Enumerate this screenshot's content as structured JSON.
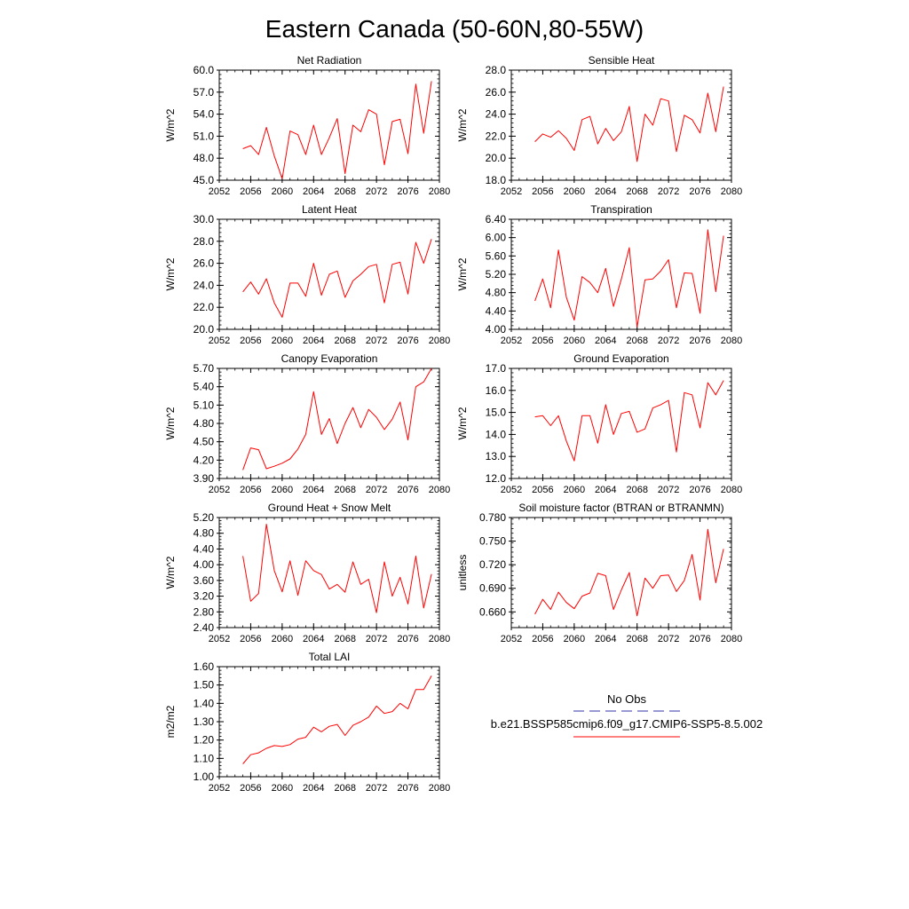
{
  "figure": {
    "title": "Eastern Canada (50-60N,80-55W)"
  },
  "legend": {
    "entries": [
      {
        "label": "No Obs",
        "color": "#3333aa",
        "dash": true
      },
      {
        "label": "b.e21.BSSP585cmip6.f09_g17.CMIP6-SSP5-8.5.002",
        "color": "#ff0000",
        "dash": false
      }
    ]
  },
  "chart_data": [
    {
      "type": "line",
      "title": "Net Radiation",
      "xlabel": "",
      "ylabel": "W/m^2",
      "xlim": [
        2052,
        2080
      ],
      "ylim": [
        45.0,
        60.0
      ],
      "xticks": [
        "2052",
        "2056",
        "2060",
        "2064",
        "2068",
        "2072",
        "2076",
        "2080"
      ],
      "yticks": [
        "45.0",
        "48.0",
        "51.0",
        "54.0",
        "57.0",
        "60.0"
      ],
      "series": [
        {
          "color": "#ff0000",
          "x": [
            2055,
            2056,
            2057,
            2058,
            2059,
            2060,
            2061,
            2062,
            2063,
            2064,
            2065,
            2066,
            2067,
            2068,
            2069,
            2070,
            2071,
            2072,
            2073,
            2074,
            2075,
            2076,
            2077,
            2078,
            2079
          ],
          "values": [
            49.3,
            49.7,
            48.5,
            52.2,
            48.3,
            45.2,
            51.7,
            51.2,
            48.5,
            52.5,
            48.5,
            50.8,
            53.4,
            45.9,
            52.5,
            51.6,
            54.6,
            54.0,
            47.1,
            53.0,
            53.3,
            48.6,
            58.1,
            51.4,
            58.5
          ]
        }
      ]
    },
    {
      "type": "line",
      "title": "Sensible Heat",
      "xlabel": "",
      "ylabel": "W/m^2",
      "xlim": [
        2052,
        2080
      ],
      "ylim": [
        18.0,
        28.0
      ],
      "xticks": [
        "2052",
        "2056",
        "2060",
        "2064",
        "2068",
        "2072",
        "2076",
        "2080"
      ],
      "yticks": [
        "18.0",
        "20.0",
        "22.0",
        "24.0",
        "26.0",
        "28.0"
      ],
      "series": [
        {
          "color": "#ff0000",
          "x": [
            2055,
            2056,
            2057,
            2058,
            2059,
            2060,
            2061,
            2062,
            2063,
            2064,
            2065,
            2066,
            2067,
            2068,
            2069,
            2070,
            2071,
            2072,
            2073,
            2074,
            2075,
            2076,
            2077,
            2078,
            2079
          ],
          "values": [
            21.5,
            22.2,
            21.9,
            22.5,
            21.8,
            20.7,
            23.5,
            23.8,
            21.3,
            22.7,
            21.6,
            22.4,
            24.7,
            19.7,
            24.0,
            23.0,
            25.4,
            25.2,
            20.6,
            23.9,
            23.5,
            22.3,
            25.9,
            22.4,
            26.5
          ]
        }
      ]
    },
    {
      "type": "line",
      "title": "Latent Heat",
      "xlabel": "",
      "ylabel": "W/m^2",
      "xlim": [
        2052,
        2080
      ],
      "ylim": [
        20.0,
        30.0
      ],
      "xticks": [
        "2052",
        "2056",
        "2060",
        "2064",
        "2068",
        "2072",
        "2076",
        "2080"
      ],
      "yticks": [
        "20.0",
        "22.0",
        "24.0",
        "26.0",
        "28.0",
        "30.0"
      ],
      "series": [
        {
          "color": "#ff0000",
          "x": [
            2055,
            2056,
            2057,
            2058,
            2059,
            2060,
            2061,
            2062,
            2063,
            2064,
            2065,
            2066,
            2067,
            2068,
            2069,
            2070,
            2071,
            2072,
            2073,
            2074,
            2075,
            2076,
            2077,
            2078,
            2079
          ],
          "values": [
            23.4,
            24.3,
            23.2,
            24.6,
            22.4,
            21.1,
            24.2,
            24.2,
            23.0,
            26.0,
            23.1,
            25.0,
            25.3,
            22.9,
            24.4,
            25.0,
            25.7,
            25.9,
            22.4,
            25.9,
            26.1,
            23.2,
            27.9,
            26.0,
            28.2
          ]
        }
      ]
    },
    {
      "type": "line",
      "title": "Transpiration",
      "xlabel": "",
      "ylabel": "W/m^2",
      "xlim": [
        2052,
        2080
      ],
      "ylim": [
        4.0,
        6.4
      ],
      "xticks": [
        "2052",
        "2056",
        "2060",
        "2064",
        "2068",
        "2072",
        "2076",
        "2080"
      ],
      "yticks": [
        "4.00",
        "4.40",
        "4.80",
        "5.20",
        "5.60",
        "6.00",
        "6.40"
      ],
      "series": [
        {
          "color": "#ff0000",
          "x": [
            2055,
            2056,
            2057,
            2058,
            2059,
            2060,
            2061,
            2062,
            2063,
            2064,
            2065,
            2066,
            2067,
            2068,
            2069,
            2070,
            2071,
            2072,
            2073,
            2074,
            2075,
            2076,
            2077,
            2078,
            2079
          ],
          "values": [
            4.62,
            5.1,
            4.47,
            5.73,
            4.7,
            4.2,
            5.15,
            5.02,
            4.8,
            5.33,
            4.5,
            5.1,
            5.78,
            4.05,
            5.08,
            5.1,
            5.27,
            5.52,
            4.47,
            5.23,
            5.22,
            4.35,
            6.17,
            4.82,
            6.04
          ]
        }
      ]
    },
    {
      "type": "line",
      "title": "Canopy Evaporation",
      "xlabel": "",
      "ylabel": "W/m^2",
      "xlim": [
        2052,
        2080
      ],
      "ylim": [
        3.9,
        5.7
      ],
      "xticks": [
        "2052",
        "2056",
        "2060",
        "2064",
        "2068",
        "2072",
        "2076",
        "2080"
      ],
      "yticks": [
        "3.90",
        "4.20",
        "4.50",
        "4.80",
        "5.10",
        "5.40",
        "5.70"
      ],
      "series": [
        {
          "color": "#ff0000",
          "x": [
            2055,
            2056,
            2057,
            2058,
            2059,
            2060,
            2061,
            2062,
            2063,
            2064,
            2065,
            2066,
            2067,
            2068,
            2069,
            2070,
            2071,
            2072,
            2073,
            2074,
            2075,
            2076,
            2077,
            2078,
            2079
          ],
          "values": [
            4.04,
            4.4,
            4.37,
            4.06,
            4.1,
            4.15,
            4.22,
            4.38,
            4.62,
            5.32,
            4.62,
            4.88,
            4.47,
            4.8,
            5.06,
            4.73,
            5.03,
            4.9,
            4.7,
            4.87,
            5.15,
            4.53,
            5.4,
            5.48,
            5.7
          ]
        }
      ]
    },
    {
      "type": "line",
      "title": "Ground Evaporation",
      "xlabel": "",
      "ylabel": "W/m^2",
      "xlim": [
        2052,
        2080
      ],
      "ylim": [
        12.0,
        17.0
      ],
      "xticks": [
        "2052",
        "2056",
        "2060",
        "2064",
        "2068",
        "2072",
        "2076",
        "2080"
      ],
      "yticks": [
        "12.0",
        "13.0",
        "14.0",
        "15.0",
        "16.0",
        "17.0"
      ],
      "series": [
        {
          "color": "#ff0000",
          "x": [
            2055,
            2056,
            2057,
            2058,
            2059,
            2060,
            2061,
            2062,
            2063,
            2064,
            2065,
            2066,
            2067,
            2068,
            2069,
            2070,
            2071,
            2072,
            2073,
            2074,
            2075,
            2076,
            2077,
            2078,
            2079
          ],
          "values": [
            14.8,
            14.85,
            14.4,
            14.85,
            13.7,
            12.8,
            14.85,
            14.85,
            13.6,
            15.35,
            14.0,
            14.95,
            15.05,
            14.1,
            14.25,
            15.2,
            15.35,
            15.55,
            13.2,
            15.9,
            15.8,
            14.3,
            16.35,
            15.8,
            16.45
          ]
        }
      ]
    },
    {
      "type": "line",
      "title": "Ground Heat + Snow Melt",
      "xlabel": "",
      "ylabel": "W/m^2",
      "xlim": [
        2052,
        2080
      ],
      "ylim": [
        2.4,
        5.2
      ],
      "xticks": [
        "2052",
        "2056",
        "2060",
        "2064",
        "2068",
        "2072",
        "2076",
        "2080"
      ],
      "yticks": [
        "2.40",
        "2.80",
        "3.20",
        "3.60",
        "4.00",
        "4.40",
        "4.80",
        "5.20"
      ],
      "series": [
        {
          "color": "#ff0000",
          "x": [
            2055,
            2056,
            2057,
            2058,
            2059,
            2060,
            2061,
            2062,
            2063,
            2064,
            2065,
            2066,
            2067,
            2068,
            2069,
            2070,
            2071,
            2072,
            2073,
            2074,
            2075,
            2076,
            2077,
            2078,
            2079
          ],
          "values": [
            4.22,
            3.07,
            3.27,
            5.03,
            3.85,
            3.31,
            4.1,
            3.22,
            4.1,
            3.85,
            3.75,
            3.38,
            3.5,
            3.3,
            4.07,
            3.5,
            3.63,
            2.78,
            4.07,
            3.2,
            3.68,
            3.0,
            4.22,
            2.9,
            3.76
          ]
        }
      ]
    },
    {
      "type": "line",
      "title": "Soil moisture factor (BTRAN or BTRANMN)",
      "xlabel": "",
      "ylabel": "unitless",
      "xlim": [
        2052,
        2080
      ],
      "ylim": [
        0.64,
        0.78
      ],
      "xticks": [
        "2052",
        "2056",
        "2060",
        "2064",
        "2068",
        "2072",
        "2076",
        "2080"
      ],
      "yticks": [
        "0.660",
        "0.690",
        "0.720",
        "0.750",
        "0.780"
      ],
      "series": [
        {
          "color": "#ff0000",
          "x": [
            2055,
            2056,
            2057,
            2058,
            2059,
            2060,
            2061,
            2062,
            2063,
            2064,
            2065,
            2066,
            2067,
            2068,
            2069,
            2070,
            2071,
            2072,
            2073,
            2074,
            2075,
            2076,
            2077,
            2078,
            2079
          ],
          "values": [
            0.657,
            0.676,
            0.663,
            0.685,
            0.672,
            0.664,
            0.68,
            0.684,
            0.709,
            0.706,
            0.663,
            0.688,
            0.71,
            0.655,
            0.703,
            0.69,
            0.706,
            0.707,
            0.686,
            0.7,
            0.733,
            0.675,
            0.765,
            0.697,
            0.74
          ]
        }
      ]
    },
    {
      "type": "line",
      "title": "Total LAI",
      "xlabel": "",
      "ylabel": "m2/m2",
      "xlim": [
        2052,
        2080
      ],
      "ylim": [
        1.0,
        1.6
      ],
      "xticks": [
        "2052",
        "2056",
        "2060",
        "2064",
        "2068",
        "2072",
        "2076",
        "2080"
      ],
      "yticks": [
        "1.00",
        "1.10",
        "1.20",
        "1.30",
        "1.40",
        "1.50",
        "1.60"
      ],
      "series": [
        {
          "color": "#ff0000",
          "x": [
            2055,
            2056,
            2057,
            2058,
            2059,
            2060,
            2061,
            2062,
            2063,
            2064,
            2065,
            2066,
            2067,
            2068,
            2069,
            2070,
            2071,
            2072,
            2073,
            2074,
            2075,
            2076,
            2077,
            2078,
            2079
          ],
          "values": [
            1.07,
            1.12,
            1.13,
            1.155,
            1.17,
            1.165,
            1.175,
            1.205,
            1.215,
            1.27,
            1.245,
            1.275,
            1.285,
            1.225,
            1.28,
            1.3,
            1.325,
            1.385,
            1.345,
            1.355,
            1.4,
            1.37,
            1.475,
            1.475,
            1.55
          ]
        }
      ]
    }
  ]
}
